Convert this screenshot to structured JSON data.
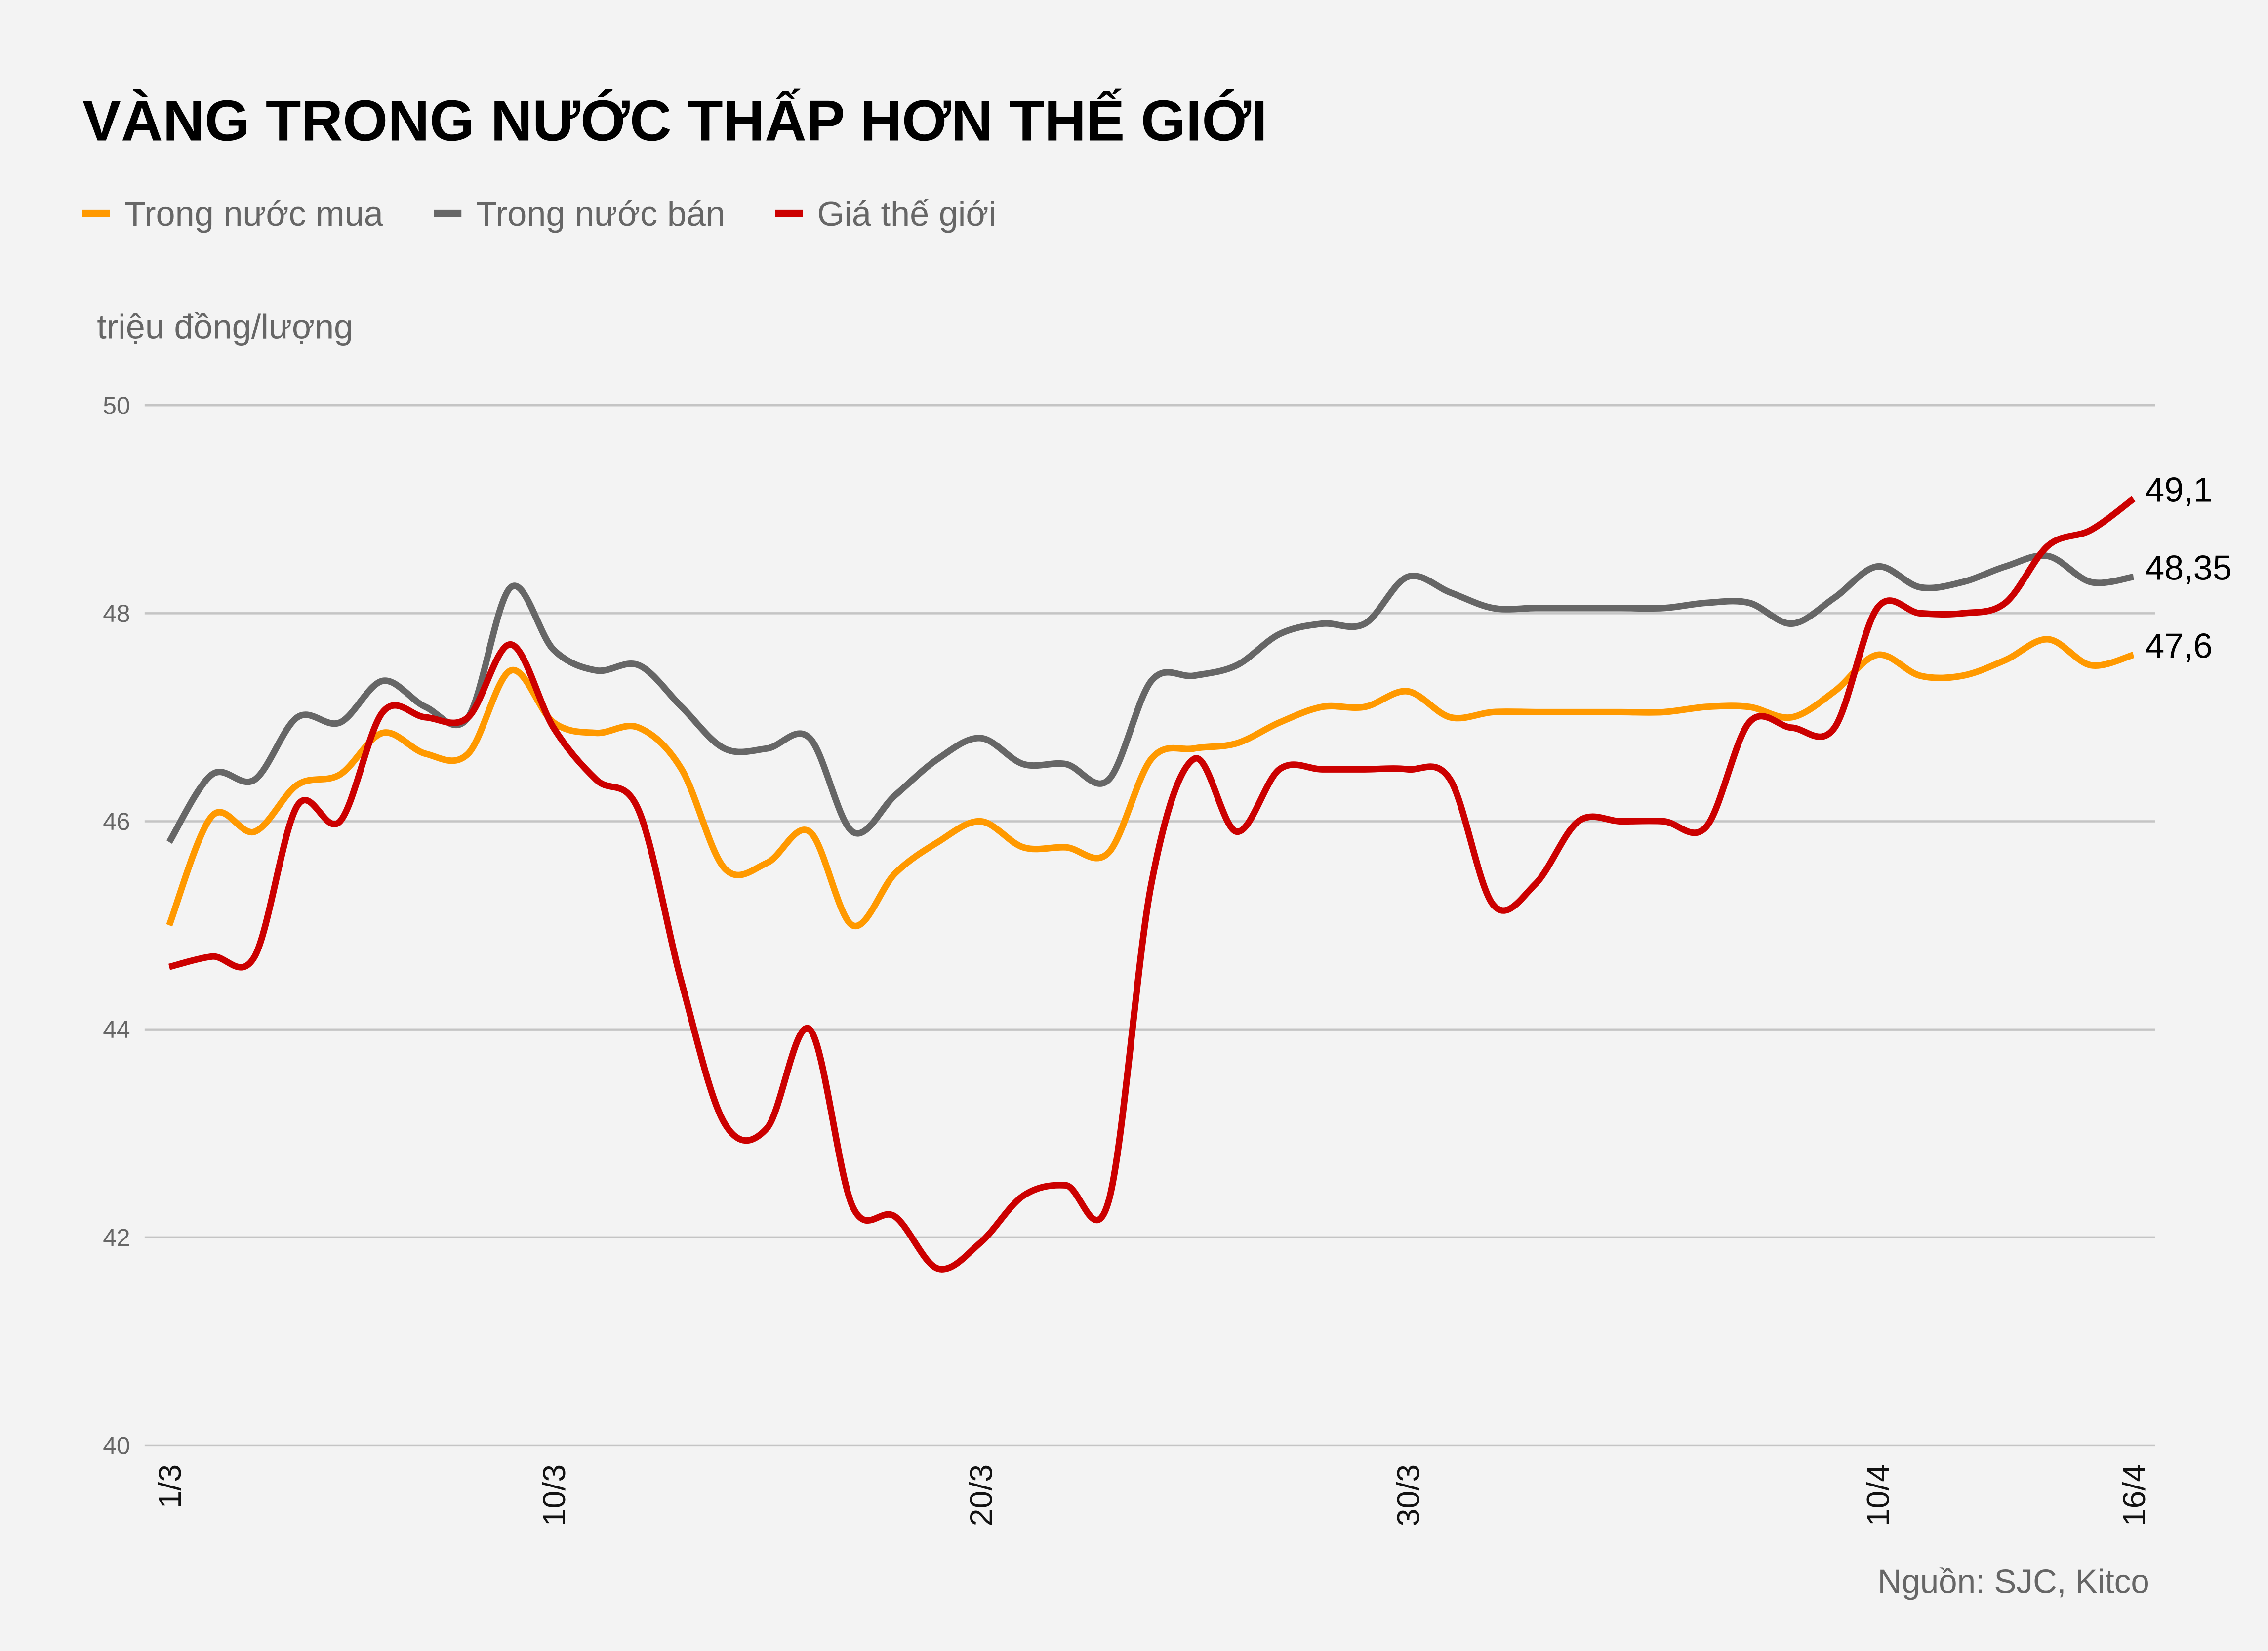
{
  "chart_data": {
    "type": "line",
    "title": "VÀNG TRONG NƯỚC THẤP HƠN THẾ GIỚI",
    "ylabel": "triệu đồng/lượng",
    "xlabel": "",
    "ylim": [
      40,
      50
    ],
    "yticks": [
      40,
      42,
      44,
      46,
      48,
      50
    ],
    "grid": true,
    "legend_position": "top-left",
    "categories": [
      "1/3",
      "2/3",
      "3/3",
      "4/3",
      "5/3",
      "6/3",
      "7/3",
      "8/3",
      "9/3",
      "10/3",
      "11/3",
      "12/3",
      "13/3",
      "14/3",
      "15/3",
      "16/3",
      "17/3",
      "18/3",
      "19/3",
      "20/3",
      "21/3",
      "22/3",
      "23/3",
      "24/3",
      "25/3",
      "26/3",
      "27/3",
      "28/3",
      "29/3",
      "30/3",
      "31/3",
      "1/4",
      "2/4",
      "3/4",
      "4/4",
      "5/4",
      "6/4",
      "7/4",
      "8/4",
      "9/4",
      "10/4",
      "11/4",
      "12/4",
      "13/4",
      "14/4",
      "15/4",
      "16/4"
    ],
    "xtick_labels": [
      "1/3",
      "10/3",
      "20/3",
      "30/3",
      "10/4",
      "16/4"
    ],
    "series": [
      {
        "name": "Trong nước mua",
        "color": "#ff9900",
        "end_label": "47,6",
        "values": [
          45.0,
          46.05,
          45.9,
          46.35,
          46.45,
          46.85,
          46.65,
          46.65,
          47.45,
          46.95,
          46.85,
          46.9,
          46.5,
          45.55,
          45.6,
          45.9,
          45.0,
          45.5,
          45.8,
          46.0,
          45.75,
          45.75,
          45.7,
          46.6,
          46.7,
          46.75,
          46.95,
          47.1,
          47.1,
          47.25,
          47.0,
          47.05,
          47.05,
          47.05,
          47.05,
          47.05,
          47.1,
          47.1,
          47.0,
          47.25,
          47.6,
          47.4,
          47.4,
          47.55,
          47.75,
          47.5,
          47.6
        ]
      },
      {
        "name": "Trong nước bán",
        "color": "#666666",
        "end_label": "48,35",
        "values": [
          45.8,
          46.45,
          46.4,
          47.0,
          46.95,
          47.35,
          47.1,
          47.0,
          48.25,
          47.65,
          47.45,
          47.5,
          47.1,
          46.7,
          46.7,
          46.8,
          45.9,
          46.25,
          46.6,
          46.8,
          46.55,
          46.55,
          46.4,
          47.35,
          47.4,
          47.5,
          47.8,
          47.9,
          47.9,
          48.35,
          48.2,
          48.05,
          48.05,
          48.05,
          48.05,
          48.05,
          48.1,
          48.1,
          47.9,
          48.15,
          48.45,
          48.25,
          48.3,
          48.45,
          48.55,
          48.3,
          48.35
        ]
      },
      {
        "name": "Giá thế giới",
        "color": "#cc0000",
        "end_label": "49,1",
        "values": [
          44.6,
          44.7,
          44.7,
          46.15,
          46.0,
          47.05,
          47.0,
          47.0,
          47.7,
          46.9,
          46.4,
          46.1,
          44.45,
          43.1,
          43.05,
          44.0,
          42.3,
          42.2,
          41.7,
          41.95,
          42.4,
          42.5,
          42.35,
          45.4,
          46.6,
          45.9,
          46.5,
          46.5,
          46.5,
          46.5,
          46.4,
          45.2,
          45.4,
          46.0,
          46.0,
          46.0,
          45.95,
          46.95,
          46.9,
          46.9,
          48.05,
          48.0,
          48.0,
          48.1,
          48.65,
          48.8,
          49.1
        ]
      }
    ],
    "source": "Nguồn: SJC, Kitco"
  }
}
